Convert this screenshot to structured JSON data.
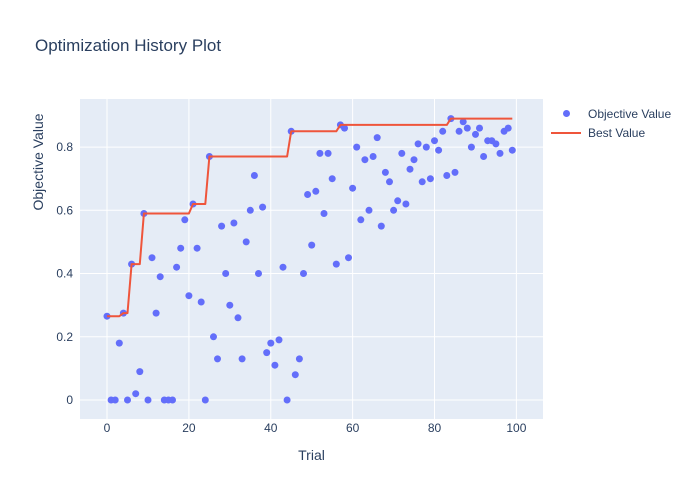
{
  "title": "Optimization History Plot",
  "legend": {
    "items": [
      {
        "label": "Objective Value",
        "swatch": "marker",
        "color": "#636EFA"
      },
      {
        "label": "Best Value",
        "swatch": "line",
        "color": "#EF553B"
      }
    ]
  },
  "chart_data": {
    "type": "scatter",
    "title": "Optimization History Plot",
    "xlabel": "Trial",
    "ylabel": "Objective Value",
    "x_ticks": [
      0,
      20,
      40,
      60,
      80,
      100
    ],
    "y_ticks": [
      0,
      0.2,
      0.4,
      0.6,
      0.8
    ],
    "xlim": [
      -6.6,
      106.5
    ],
    "ylim": [
      -0.06,
      0.952
    ],
    "grid": true,
    "legend_position": "top-right-outside",
    "colors": {
      "plot_bg": "#E5ECF6",
      "paper_bg": "#FFFFFF",
      "grid": "#FFFFFF",
      "text": "#2a3f5f",
      "objective_marker": "#636EFA",
      "best_line": "#EF553B"
    },
    "series": [
      {
        "name": "Objective Value",
        "mode": "markers",
        "color": "#636EFA",
        "x_is_trial_index": true,
        "values": [
          0.265,
          0.0,
          0.0,
          0.18,
          0.275,
          0.0,
          0.43,
          0.02,
          0.09,
          0.59,
          0.0,
          0.45,
          0.275,
          0.39,
          0.0,
          0.0,
          0.0,
          0.42,
          0.48,
          0.57,
          0.33,
          0.62,
          0.48,
          0.31,
          0.0,
          0.77,
          0.2,
          0.13,
          0.55,
          0.4,
          0.3,
          0.56,
          0.26,
          0.13,
          0.5,
          0.6,
          0.71,
          0.4,
          0.61,
          0.15,
          0.18,
          0.11,
          0.19,
          0.42,
          0.0,
          0.85,
          0.08,
          0.13,
          0.4,
          0.65,
          0.49,
          0.66,
          0.78,
          0.59,
          0.78,
          0.7,
          0.43,
          0.87,
          0.86,
          0.45,
          0.67,
          0.8,
          0.57,
          0.76,
          0.6,
          0.77,
          0.83,
          0.55,
          0.72,
          0.69,
          0.6,
          0.63,
          0.78,
          0.62,
          0.73,
          0.76,
          0.81,
          0.69,
          0.8,
          0.7,
          0.82,
          0.79,
          0.85,
          0.71,
          0.89,
          0.72,
          0.85,
          0.88,
          0.86,
          0.8,
          0.84,
          0.86,
          0.77,
          0.82,
          0.82,
          0.81,
          0.78,
          0.85,
          0.86,
          0.79
        ]
      },
      {
        "name": "Best Value",
        "mode": "line",
        "color": "#EF553B",
        "derived": "running maximum of Objective Value",
        "visible_steps": [
          [
            0,
            0.265
          ],
          [
            4,
            0.275
          ],
          [
            6,
            0.43
          ],
          [
            9,
            0.59
          ],
          [
            21,
            0.62
          ],
          [
            25,
            0.77
          ],
          [
            45,
            0.85
          ],
          [
            57,
            0.87
          ],
          [
            84,
            0.89
          ]
        ]
      }
    ]
  }
}
